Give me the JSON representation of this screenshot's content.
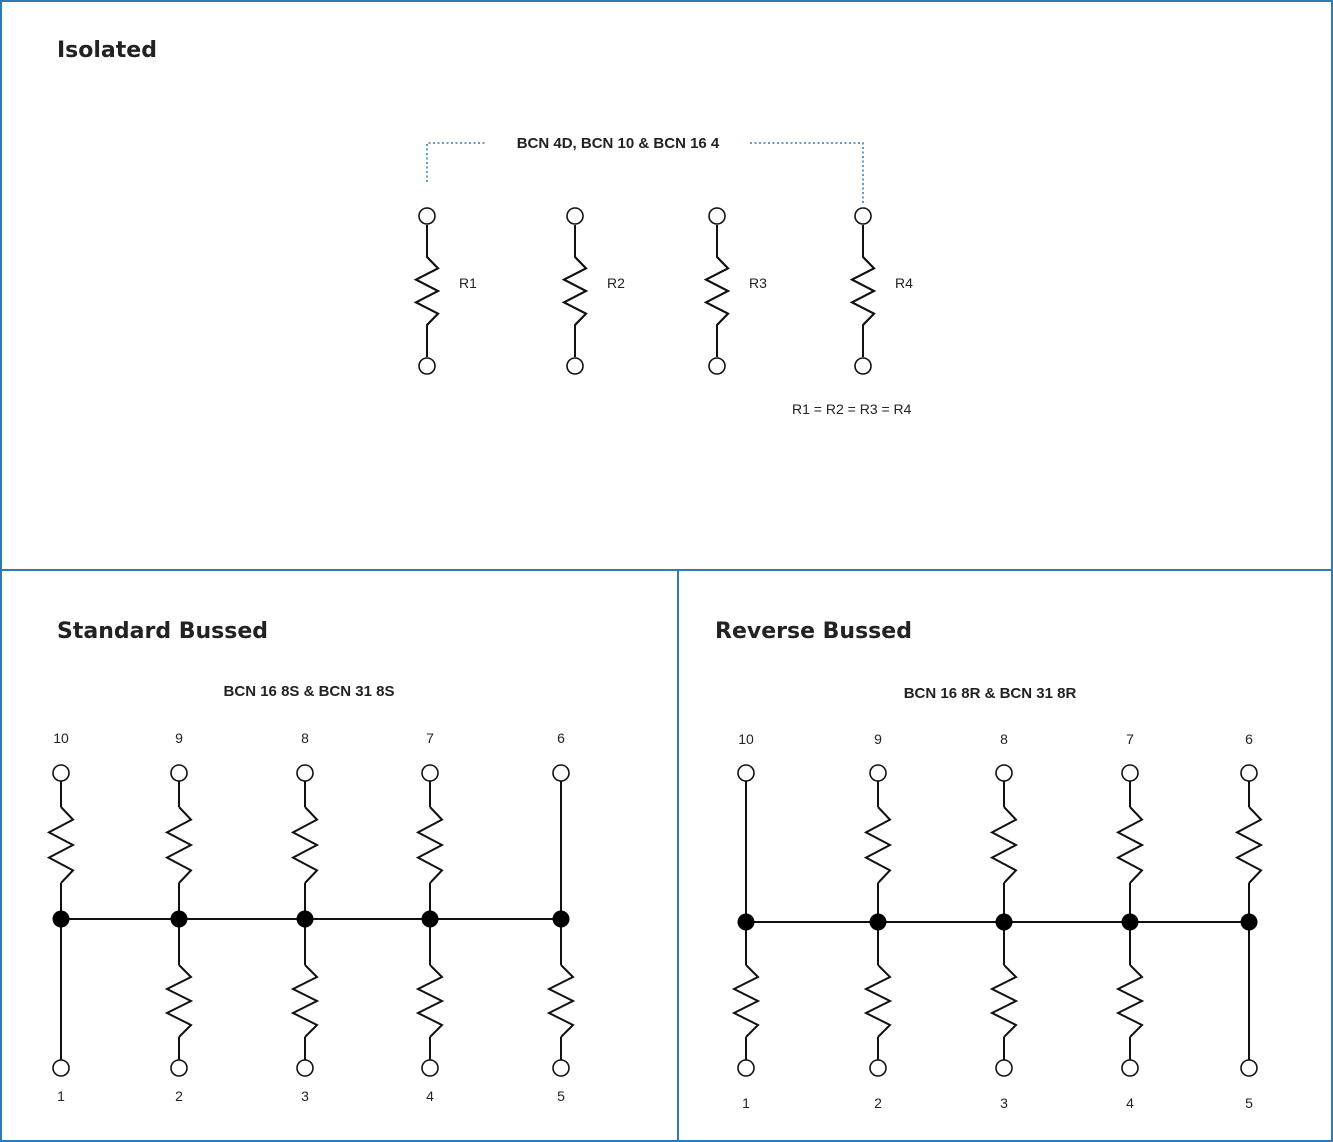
{
  "isolated": {
    "title": "Isolated",
    "part_label": "BCN 4D, BCN 10 & BCN 16 4",
    "resistors": [
      "R1",
      "R2",
      "R3",
      "R4"
    ],
    "equation": "R1 = R2 = R3 = R4"
  },
  "standard": {
    "title": "Standard Bussed",
    "part_label": "BCN 16 8S & BCN 31 8S",
    "top_pins": [
      "10",
      "9",
      "8",
      "7",
      "6"
    ],
    "bottom_pins": [
      "1",
      "2",
      "3",
      "4",
      "5"
    ]
  },
  "reverse": {
    "title": "Reverse Bussed",
    "part_label": "BCN 16 8R & BCN 31 8R",
    "top_pins": [
      "10",
      "9",
      "8",
      "7",
      "6"
    ],
    "bottom_pins": [
      "1",
      "2",
      "3",
      "4",
      "5"
    ]
  },
  "colors": {
    "border": "#2f79b5",
    "ink": "#111111"
  }
}
